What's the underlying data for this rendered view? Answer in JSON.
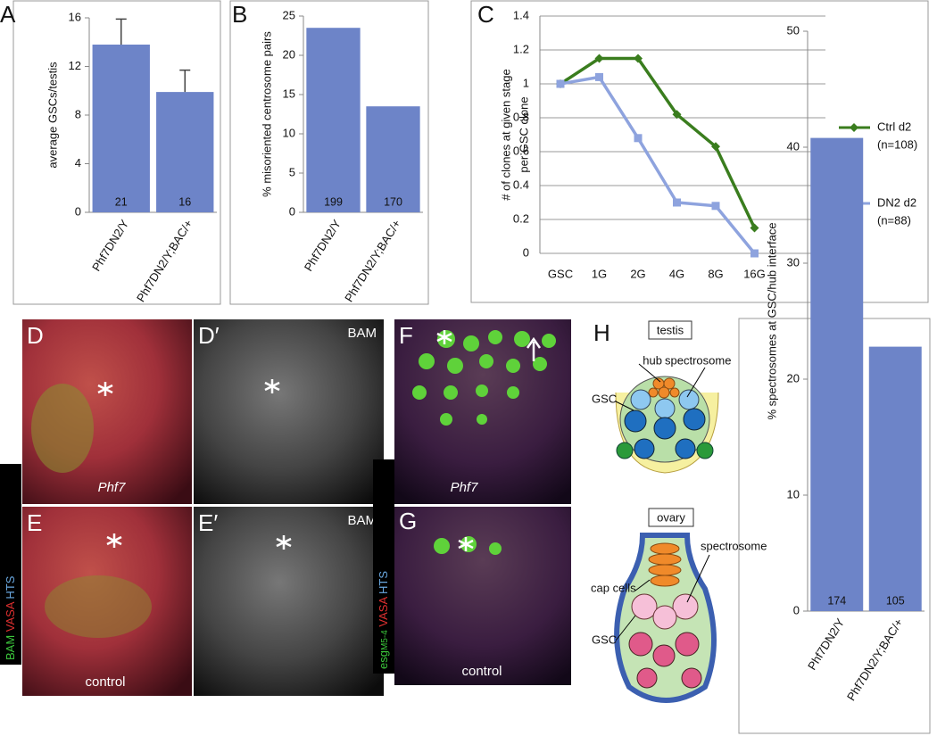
{
  "panel_letters": {
    "A": "A",
    "B": "B",
    "C": "C",
    "D": "D",
    "D2": "D′",
    "E": "E",
    "E2": "E′",
    "F": "F",
    "G": "G",
    "H": "H"
  },
  "chart_data": [
    {
      "type": "bar",
      "ylabel": "average GSCs/testis",
      "categories": [
        "Phf7DN2/Y",
        "Phf7DN2/Y;BAC/+"
      ],
      "values": [
        13.8,
        9.9
      ],
      "errors": [
        2.1,
        1.8
      ],
      "n_labels": [
        "21",
        "16"
      ],
      "color": "#6d84c8",
      "ylim": [
        0,
        16
      ],
      "yticks": [
        0,
        4,
        8,
        12,
        16
      ],
      "grid": false
    },
    {
      "type": "bar",
      "ylabel": "% misoriented centrosome pairs",
      "categories": [
        "Phf7DN2/Y",
        "Phf7DN2/Y;BAC/+"
      ],
      "values": [
        23.5,
        13.5
      ],
      "n_labels": [
        "199",
        "170"
      ],
      "color": "#6d84c8",
      "ylim": [
        0,
        25
      ],
      "yticks": [
        0,
        5,
        10,
        15,
        20,
        25
      ],
      "grid": false
    },
    {
      "type": "line",
      "ylabel": [
        "# of clones at given stage",
        "per GSC clone"
      ],
      "categories": [
        "GSC",
        "1G",
        "2G",
        "4G",
        "8G",
        "16G"
      ],
      "series": [
        {
          "name": "Ctrl d2",
          "note": "(n=108)",
          "color": "#3a7d1e",
          "marker": "diamond",
          "values": [
            1,
            1.15,
            1.15,
            0.82,
            0.63,
            0.15
          ]
        },
        {
          "name": "DN2 d2",
          "note": "(n=88)",
          "color": "#8ea3de",
          "marker": "square",
          "values": [
            1,
            1.04,
            0.68,
            0.3,
            0.28,
            0
          ]
        }
      ],
      "ylim": [
        0,
        1.4
      ],
      "yticks": [
        0,
        0.2,
        0.4,
        0.6,
        0.8,
        1,
        1.2,
        1.4
      ],
      "grid": true
    },
    {
      "type": "bar",
      "ylabel": "% spectrosomes at GSC/hub interface",
      "categories": [
        "Phf7DN2/Y",
        "Phf7DN2/Y;BAC/+"
      ],
      "values": [
        40.8,
        22.8
      ],
      "n_labels": [
        "174",
        "105"
      ],
      "color": "#6d84c8",
      "ylim": [
        0,
        50
      ],
      "yticks": [
        0,
        10,
        20,
        30,
        40,
        50
      ],
      "grid": false
    }
  ],
  "images": {
    "D2": "BAM",
    "E2": "BAM",
    "D": "Phf7",
    "E": "control",
    "F": "Phf7",
    "G": "control"
  },
  "stain_labels": {
    "left": [
      "BAM",
      "VASA",
      "HTS"
    ],
    "right": [
      "esg",
      "M5-4",
      "VASA",
      "HTS"
    ]
  },
  "diagram": {
    "testis": "testis",
    "hub": "hub",
    "spectrosome_top": "spectrosome",
    "gsc_top": "GSC",
    "ovary": "ovary",
    "spectrosome_bottom": "spectrosome",
    "cap_cells": "cap cells",
    "gsc_bottom": "GSC"
  }
}
